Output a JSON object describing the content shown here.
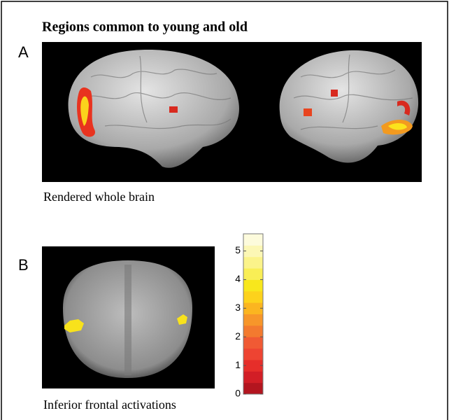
{
  "figure": {
    "title": "Regions common to young and old",
    "panels": [
      {
        "label": "A",
        "caption": "Rendered whole brain"
      },
      {
        "label": "B",
        "caption": "Inferior frontal activations"
      }
    ],
    "colorbar": {
      "clim": [
        0,
        5.6
      ],
      "ticks": [
        0,
        1,
        2,
        3,
        4,
        5
      ],
      "colors": [
        "#b3151f",
        "#d21e26",
        "#e62e2a",
        "#ee4432",
        "#f05a34",
        "#f37a2f",
        "#f7962a",
        "#fbb520",
        "#fdd21c",
        "#f8e71c",
        "#f9ee55",
        "#fbf38a",
        "#fcf7b5",
        "#fdfbdc"
      ]
    }
  }
}
